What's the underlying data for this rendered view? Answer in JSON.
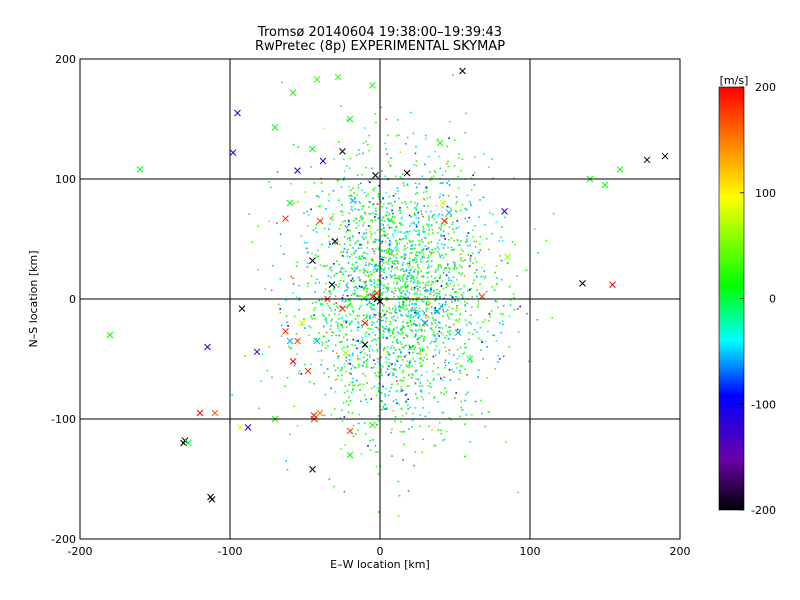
{
  "chart_data": {
    "type": "scatter",
    "title": "Tromsø 20140604 19:38:00–19:39:43",
    "subtitle": "RwPretec (8p) EXPERIMENTAL SKYMAP",
    "xlabel": "E–W location [km]",
    "ylabel": "N–S location [km]",
    "xlim": [
      -200,
      200
    ],
    "ylim": [
      -200,
      200
    ],
    "xticks": [
      -200,
      -100,
      0,
      100,
      200
    ],
    "yticks": [
      -200,
      -100,
      0,
      100,
      200
    ],
    "grid_lines": [
      -100,
      0,
      100
    ],
    "colorbar": {
      "label": "[m/s]",
      "range": [
        -200,
        200
      ],
      "ticks": [
        -200,
        -100,
        0,
        100,
        200
      ],
      "colormap": "rainbow (black → purple → blue → cyan → green → yellow → red)",
      "placement": "right"
    },
    "series": [
      {
        "marker": "x",
        "points": [
          [
            -130,
            -118,
            -210
          ],
          [
            -131,
            -120,
            -210
          ],
          [
            -45,
            -142,
            -210
          ],
          [
            -113,
            -165,
            -210
          ],
          [
            -112,
            -167,
            -210
          ],
          [
            55,
            190,
            -210
          ],
          [
            -3,
            103,
            -210
          ],
          [
            -25,
            123,
            -210
          ],
          [
            18,
            105,
            -210
          ],
          [
            -45,
            32,
            -210
          ],
          [
            -30,
            48,
            -210
          ],
          [
            0,
            -2,
            -210
          ],
          [
            -2,
            0,
            -210
          ],
          [
            -10,
            -38,
            -210
          ],
          [
            -92,
            -8,
            -210
          ],
          [
            135,
            13,
            -210
          ],
          [
            178,
            116,
            -210
          ],
          [
            190,
            119,
            -210
          ],
          [
            -32,
            12,
            -210
          ],
          [
            -115,
            -40,
            -120
          ],
          [
            -82,
            -44,
            -120
          ],
          [
            -88,
            -107,
            -120
          ],
          [
            -95,
            155,
            -120
          ],
          [
            -98,
            122,
            -120
          ],
          [
            -55,
            107,
            -110
          ],
          [
            83,
            73,
            -110
          ],
          [
            -38,
            115,
            -110
          ],
          [
            30,
            -20,
            -70
          ],
          [
            38,
            -10,
            -70
          ],
          [
            -18,
            82,
            -60
          ],
          [
            46,
            72,
            -60
          ],
          [
            52,
            -28,
            -60
          ],
          [
            -42,
            -35,
            -60
          ],
          [
            -60,
            -35,
            -60
          ],
          [
            25,
            -12,
            -60
          ],
          [
            -128,
            -120,
            0
          ],
          [
            -160,
            108,
            0
          ],
          [
            -180,
            -30,
            10
          ],
          [
            140,
            100,
            10
          ],
          [
            150,
            95,
            10
          ],
          [
            160,
            108,
            20
          ],
          [
            -45,
            125,
            10
          ],
          [
            -20,
            150,
            10
          ],
          [
            -28,
            185,
            30
          ],
          [
            -5,
            178,
            20
          ],
          [
            -42,
            183,
            30
          ],
          [
            -58,
            172,
            20
          ],
          [
            -70,
            143,
            10
          ],
          [
            40,
            130,
            20
          ],
          [
            -60,
            80,
            10
          ],
          [
            -20,
            -130,
            10
          ],
          [
            -5,
            -105,
            10
          ],
          [
            -70,
            -100,
            10
          ],
          [
            60,
            -50,
            10
          ],
          [
            85,
            35,
            60
          ],
          [
            42,
            80,
            80
          ],
          [
            -93,
            -107,
            90
          ],
          [
            -52,
            -20,
            80
          ],
          [
            -23,
            -45,
            70
          ],
          [
            -40,
            -95,
            150
          ],
          [
            -110,
            -95,
            160
          ],
          [
            -35,
            0,
            180
          ],
          [
            -44,
            -97,
            190
          ],
          [
            -44,
            -100,
            180
          ],
          [
            -63,
            67,
            180
          ],
          [
            -58,
            -52,
            200
          ],
          [
            155,
            12,
            200
          ],
          [
            -25,
            -8,
            190
          ],
          [
            -40,
            65,
            180
          ],
          [
            -2,
            5,
            180
          ],
          [
            -10,
            -20,
            190
          ],
          [
            -20,
            -110,
            170
          ],
          [
            68,
            2,
            180
          ],
          [
            43,
            65,
            190
          ],
          [
            -5,
            2,
            200
          ],
          [
            -63,
            -27,
            180
          ],
          [
            -55,
            -35,
            170
          ],
          [
            -48,
            -60,
            180
          ],
          [
            -120,
            -95,
            200
          ]
        ]
      },
      {
        "marker": "dot",
        "note": "dense cluster of small dots, predominantly green (≈0 to +40 m/s) and cyan (≈−40 to −70 m/s), centered near (10, 0) km with spread ≈ ±60 km E–W and ±100 km N–S",
        "cluster_center": [
          10,
          5
        ],
        "cluster_spread": [
          32,
          55
        ],
        "count_estimate": 2500
      }
    ]
  }
}
